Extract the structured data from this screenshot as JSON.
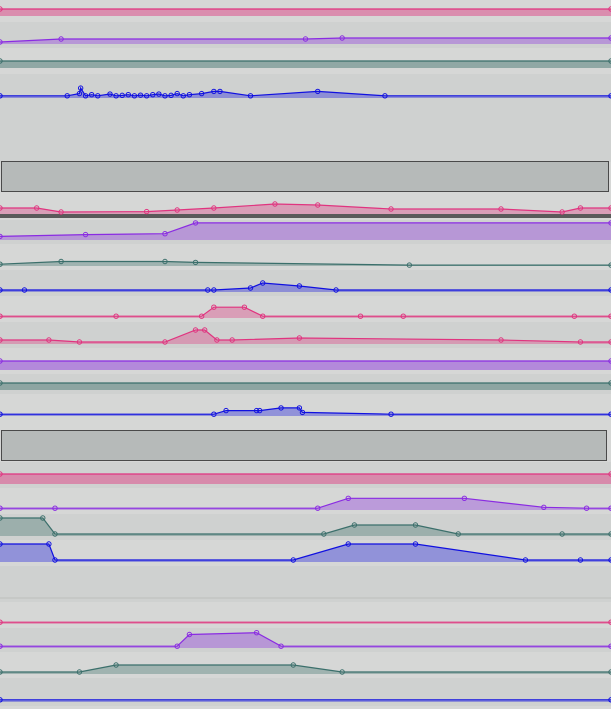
{
  "colors": {
    "background": "#d6d7d6",
    "lane_alt": "#cfd1d0",
    "pink": "#e0347f",
    "purple": "#8a2be2",
    "teal": "#3b6f6b",
    "blue": "#1010e0",
    "clip_fill": "#b6bab9",
    "clip_border": "#4a4a4a",
    "separator": "#5a5a5a"
  },
  "icons": {
    "lane-handle": "small-triangle",
    "point": "circle-marker"
  },
  "lanes": [
    {
      "name": "lane-pink-1",
      "color": "pink",
      "fill": "full",
      "points": [
        [
          0,
          0.5
        ],
        [
          100,
          0.5
        ]
      ]
    },
    {
      "name": "lane-purple-1",
      "color": "purple",
      "points": [
        [
          0,
          0.1
        ],
        [
          10,
          0.25
        ],
        [
          50,
          0.25
        ],
        [
          56,
          0.3
        ],
        [
          100,
          0.3
        ]
      ]
    },
    {
      "name": "lane-teal-1",
      "color": "teal",
      "fill": "full",
      "points": [
        [
          0,
          0.5
        ],
        [
          100,
          0.5
        ]
      ]
    },
    {
      "name": "lane-blue-1",
      "color": "blue",
      "points": [
        [
          0,
          0.1
        ],
        [
          11,
          0.1
        ],
        [
          13,
          0.2
        ],
        [
          13.2,
          0.45
        ],
        [
          14,
          0.1
        ],
        [
          15,
          0.15
        ],
        [
          16,
          0.1
        ],
        [
          18,
          0.18
        ],
        [
          19,
          0.1
        ],
        [
          20,
          0.12
        ],
        [
          21,
          0.15
        ],
        [
          22,
          0.1
        ],
        [
          23,
          0.13
        ],
        [
          24,
          0.1
        ],
        [
          25,
          0.15
        ],
        [
          26,
          0.18
        ],
        [
          27,
          0.1
        ],
        [
          28,
          0.12
        ],
        [
          29,
          0.2
        ],
        [
          30,
          0.1
        ],
        [
          31,
          0.15
        ],
        [
          33,
          0.2
        ],
        [
          35,
          0.3
        ],
        [
          36,
          0.3
        ],
        [
          41,
          0.1
        ],
        [
          52,
          0.3
        ],
        [
          63,
          0.1
        ],
        [
          100,
          0.1
        ]
      ]
    },
    {
      "name": "lane-pink-2",
      "color": "pink",
      "points": [
        [
          0,
          0.3
        ],
        [
          6,
          0.3
        ],
        [
          10,
          0.1
        ],
        [
          24,
          0.12
        ],
        [
          29,
          0.2
        ],
        [
          35,
          0.3
        ],
        [
          45,
          0.5
        ],
        [
          52,
          0.45
        ],
        [
          64,
          0.25
        ],
        [
          82,
          0.25
        ],
        [
          92,
          0.1
        ],
        [
          95,
          0.3
        ],
        [
          100,
          0.3
        ]
      ]
    },
    {
      "name": "lane-purple-2",
      "color": "purple",
      "points": [
        [
          0,
          0.2
        ],
        [
          14,
          0.3
        ],
        [
          27,
          0.35
        ],
        [
          32,
          0.95
        ],
        [
          100,
          0.95
        ]
      ]
    },
    {
      "name": "lane-teal-2",
      "color": "teal",
      "points": [
        [
          0,
          0.1
        ],
        [
          10,
          0.25
        ],
        [
          27,
          0.25
        ],
        [
          32,
          0.2
        ],
        [
          67,
          0.05
        ],
        [
          100,
          0.05
        ]
      ]
    },
    {
      "name": "lane-blue-2",
      "color": "blue",
      "points": [
        [
          0,
          0.1
        ],
        [
          4,
          0.1
        ],
        [
          34,
          0.1
        ],
        [
          35,
          0.1
        ],
        [
          41,
          0.2
        ],
        [
          43,
          0.45
        ],
        [
          49,
          0.3
        ],
        [
          55,
          0.1
        ],
        [
          100,
          0.1
        ]
      ]
    },
    {
      "name": "lane-pink-3",
      "color": "pink",
      "points": [
        [
          0,
          0.1
        ],
        [
          19,
          0.1
        ],
        [
          33,
          0.1
        ],
        [
          35,
          0.6
        ],
        [
          40,
          0.6
        ],
        [
          43,
          0.1
        ],
        [
          59,
          0.1
        ],
        [
          66,
          0.1
        ],
        [
          94,
          0.1
        ],
        [
          100,
          0.1
        ]
      ]
    },
    {
      "name": "lane-pink-4",
      "color": "pink",
      "points": [
        [
          0,
          0.2
        ],
        [
          8,
          0.2
        ],
        [
          13,
          0.1
        ],
        [
          27,
          0.1
        ],
        [
          32,
          0.7
        ],
        [
          33.5,
          0.7
        ],
        [
          35.5,
          0.2
        ],
        [
          38,
          0.2
        ],
        [
          49,
          0.3
        ],
        [
          82,
          0.2
        ],
        [
          95,
          0.1
        ],
        [
          100,
          0.1
        ]
      ]
    },
    {
      "name": "lane-purple-3",
      "color": "purple",
      "fill": "full",
      "points": [
        [
          0,
          0.5
        ],
        [
          100,
          0.5
        ]
      ]
    },
    {
      "name": "lane-teal-3",
      "color": "teal",
      "fill": "full",
      "points": [
        [
          0,
          0.5
        ],
        [
          100,
          0.5
        ]
      ]
    },
    {
      "name": "lane-blue-3",
      "color": "blue",
      "points": [
        [
          0,
          0.1
        ],
        [
          35,
          0.1
        ],
        [
          37,
          0.3
        ],
        [
          42,
          0.3
        ],
        [
          42.5,
          0.3
        ],
        [
          46,
          0.45
        ],
        [
          49,
          0.45
        ],
        [
          49.5,
          0.2
        ],
        [
          64,
          0.1
        ],
        [
          100,
          0.1
        ]
      ]
    },
    {
      "name": "lane-pink-5",
      "color": "pink",
      "fill": "full",
      "points": [
        [
          0,
          0.5
        ],
        [
          100,
          0.5
        ]
      ]
    },
    {
      "name": "lane-purple-4",
      "color": "purple",
      "points": [
        [
          0,
          0.1
        ],
        [
          9,
          0.1
        ],
        [
          52,
          0.1
        ],
        [
          57,
          0.65
        ],
        [
          76,
          0.65
        ],
        [
          89,
          0.15
        ],
        [
          96,
          0.1
        ],
        [
          100,
          0.1
        ]
      ]
    },
    {
      "name": "lane-teal-4",
      "color": "teal",
      "points": [
        [
          0,
          0.9
        ],
        [
          7,
          0.9
        ],
        [
          9,
          0.1
        ],
        [
          53,
          0.1
        ],
        [
          58,
          0.55
        ],
        [
          68,
          0.55
        ],
        [
          75,
          0.1
        ],
        [
          92,
          0.1
        ],
        [
          100,
          0.1
        ]
      ]
    },
    {
      "name": "lane-blue-4",
      "color": "blue",
      "points": [
        [
          0,
          0.9
        ],
        [
          8,
          0.9
        ],
        [
          9,
          0.1
        ],
        [
          48,
          0.1
        ],
        [
          57,
          0.9
        ],
        [
          68,
          0.9
        ],
        [
          86,
          0.1
        ],
        [
          95,
          0.1
        ],
        [
          100,
          0.1
        ]
      ]
    },
    {
      "name": "lane-empty-1",
      "color": "teal",
      "points": []
    },
    {
      "name": "lane-pink-6",
      "color": "pink",
      "points": [
        [
          0,
          0.1
        ],
        [
          100,
          0.1
        ]
      ]
    },
    {
      "name": "lane-purple-5",
      "color": "purple",
      "points": [
        [
          0,
          0.1
        ],
        [
          29,
          0.1
        ],
        [
          31,
          0.75
        ],
        [
          42,
          0.85
        ],
        [
          46,
          0.1
        ],
        [
          100,
          0.1
        ]
      ]
    },
    {
      "name": "lane-teal-5",
      "color": "teal",
      "points": [
        [
          0,
          0.1
        ],
        [
          13,
          0.1
        ],
        [
          19,
          0.45
        ],
        [
          48,
          0.45
        ],
        [
          56,
          0.1
        ],
        [
          100,
          0.1
        ]
      ]
    },
    {
      "name": "lane-blue-5",
      "color": "blue",
      "points": [
        [
          0,
          0.1
        ],
        [
          100,
          0.1
        ]
      ]
    }
  ]
}
